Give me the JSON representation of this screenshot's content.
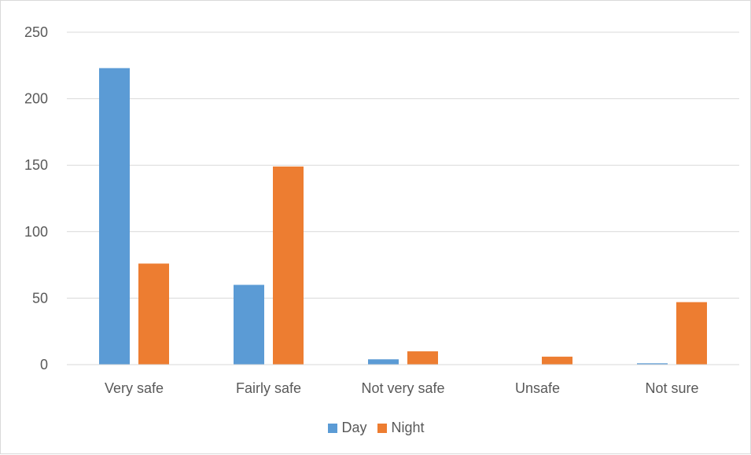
{
  "chart_data": {
    "type": "bar",
    "title": "",
    "xlabel": "",
    "ylabel": "",
    "categories": [
      "Very safe",
      "Fairly safe",
      "Not very safe",
      "Unsafe",
      "Not sure"
    ],
    "series": [
      {
        "name": "Day",
        "color": "#5b9bd5",
        "values": [
          223,
          60,
          4,
          0,
          1
        ]
      },
      {
        "name": "Night",
        "color": "#ed7d31",
        "values": [
          76,
          149,
          10,
          6,
          47
        ]
      }
    ],
    "ylim": [
      0,
      250
    ],
    "yticks": [
      "0",
      "50",
      "100",
      "150",
      "200",
      "250"
    ],
    "grid": true,
    "legend": "bottom"
  }
}
